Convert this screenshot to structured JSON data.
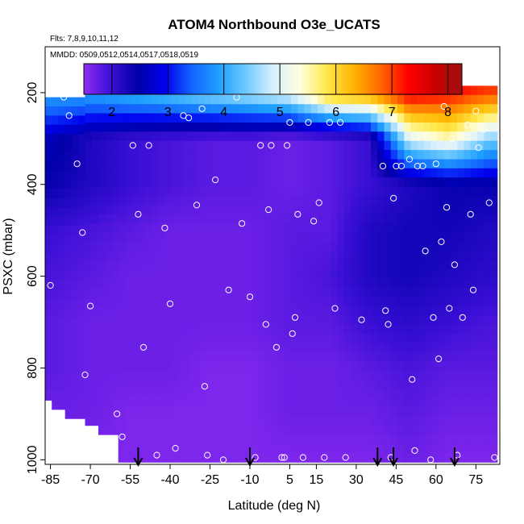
{
  "chart_data": {
    "type": "heatmap",
    "title": "ATOM4 Northbound O3e_UCATS",
    "subtitle_lines": [
      "Flts: 7,8,9,10,11,12",
      "MMDD: 0509,0512,0514,0517,0518,0519"
    ],
    "xlabel": "Latitude (deg N)",
    "ylabel": "PSXC (mbar)",
    "xlim": [
      -87,
      84
    ],
    "ylim": [
      1010,
      100
    ],
    "y_reversed": true,
    "x_ticks": [
      -85,
      -70,
      -55,
      -40,
      -25,
      -10,
      5,
      15,
      30,
      45,
      60,
      75
    ],
    "y_ticks": [
      200,
      400,
      600,
      800,
      1000
    ],
    "colorbar": {
      "range": [
        1.5,
        8.25
      ],
      "ticks": [
        2,
        3,
        4,
        5,
        6,
        7,
        8
      ],
      "colors": [
        "#8f2cf2",
        "#3a0fd6",
        "#0000a8",
        "#0000ee",
        "#1464ff",
        "#1ea0ff",
        "#6ec8ff",
        "#d8f0ff",
        "#ffffe0",
        "#ffe84a",
        "#ffb400",
        "#ff6600",
        "#ff0000",
        "#c80000",
        "#9e1010"
      ]
    },
    "grid_field": {
      "lat": [
        -85,
        -70,
        -55,
        -40,
        -25,
        -10,
        5,
        20,
        35,
        50,
        65,
        80
      ],
      "pressure": [
        200,
        300,
        400,
        500,
        600,
        700,
        800,
        900,
        1000
      ],
      "o3e": [
        [
          4.0,
          4.0,
          4.2,
          4.4,
          4.7,
          4.9,
          5.2,
          6.5,
          6.8,
          7.5,
          7.3,
          7.0
        ],
        [
          2.6,
          2.2,
          2.0,
          1.9,
          1.8,
          1.8,
          1.7,
          1.8,
          2.0,
          5.0,
          5.5,
          4.5
        ],
        [
          2.4,
          2.2,
          2.0,
          1.9,
          1.8,
          1.8,
          1.7,
          1.8,
          2.0,
          2.2,
          2.4,
          2.4
        ],
        [
          2.0,
          1.9,
          1.8,
          1.7,
          1.7,
          1.7,
          1.8,
          1.8,
          2.2,
          2.3,
          2.3,
          2.2
        ],
        [
          1.9,
          1.8,
          1.7,
          1.7,
          1.7,
          1.7,
          1.8,
          1.9,
          2.2,
          2.3,
          2.2,
          2.1
        ],
        [
          1.8,
          1.7,
          1.7,
          1.7,
          1.7,
          1.7,
          1.8,
          1.8,
          2.0,
          2.1,
          2.0,
          1.9
        ],
        [
          1.8,
          1.7,
          1.7,
          1.7,
          1.6,
          1.6,
          1.7,
          1.7,
          1.8,
          1.9,
          1.8,
          1.8
        ],
        [
          1.7,
          1.7,
          1.6,
          1.6,
          1.6,
          1.6,
          1.7,
          1.7,
          1.7,
          1.8,
          1.7,
          1.7
        ],
        [
          1.6,
          1.6,
          1.6,
          1.6,
          1.6,
          1.6,
          1.6,
          1.6,
          1.6,
          1.7,
          1.6,
          1.6
        ]
      ]
    },
    "obs_points": [
      [
        -85,
        620
      ],
      [
        -80,
        210
      ],
      [
        -78,
        250
      ],
      [
        -75,
        355
      ],
      [
        -73,
        505
      ],
      [
        -70,
        665
      ],
      [
        -72,
        815
      ],
      [
        -60,
        900
      ],
      [
        -58,
        950
      ],
      [
        -54,
        315
      ],
      [
        -52,
        465
      ],
      [
        -50,
        755
      ],
      [
        -45,
        990
      ],
      [
        -48,
        315
      ],
      [
        -42,
        495
      ],
      [
        -40,
        660
      ],
      [
        -38,
        975
      ],
      [
        -35,
        250
      ],
      [
        -33,
        255
      ],
      [
        -30,
        445
      ],
      [
        -28,
        235
      ],
      [
        -27,
        840
      ],
      [
        -26,
        990
      ],
      [
        -23,
        390
      ],
      [
        -20,
        1000
      ],
      [
        -18,
        630
      ],
      [
        -15,
        210
      ],
      [
        -13,
        485
      ],
      [
        -10,
        645
      ],
      [
        -8,
        995
      ],
      [
        -6,
        315
      ],
      [
        -4,
        705
      ],
      [
        -3,
        455
      ],
      [
        -2,
        315
      ],
      [
        0,
        755
      ],
      [
        2,
        995
      ],
      [
        3,
        995
      ],
      [
        4,
        315
      ],
      [
        6,
        725
      ],
      [
        5,
        265
      ],
      [
        7,
        690
      ],
      [
        8,
        465
      ],
      [
        10,
        995
      ],
      [
        12,
        265
      ],
      [
        14,
        480
      ],
      [
        16,
        440
      ],
      [
        18,
        995
      ],
      [
        20,
        265
      ],
      [
        22,
        670
      ],
      [
        24,
        265
      ],
      [
        26,
        995
      ],
      [
        32,
        695
      ],
      [
        40,
        360
      ],
      [
        41,
        675
      ],
      [
        42,
        705
      ],
      [
        43,
        995
      ],
      [
        44,
        430
      ],
      [
        45,
        360
      ],
      [
        47,
        360
      ],
      [
        50,
        345
      ],
      [
        51,
        825
      ],
      [
        52,
        980
      ],
      [
        53,
        360
      ],
      [
        55,
        360
      ],
      [
        56,
        545
      ],
      [
        58,
        1000
      ],
      [
        59,
        690
      ],
      [
        60,
        355
      ],
      [
        61,
        780
      ],
      [
        62,
        525
      ],
      [
        63,
        230
      ],
      [
        64,
        450
      ],
      [
        65,
        670
      ],
      [
        66,
        300
      ],
      [
        67,
        575
      ],
      [
        68,
        990
      ],
      [
        70,
        690
      ],
      [
        72,
        270
      ],
      [
        73,
        465
      ],
      [
        74,
        630
      ],
      [
        75,
        240
      ],
      [
        76,
        320
      ],
      [
        78,
        280
      ],
      [
        80,
        440
      ],
      [
        82,
        995
      ]
    ],
    "arrow_lats": [
      -52,
      -10,
      38,
      44,
      67
    ]
  }
}
